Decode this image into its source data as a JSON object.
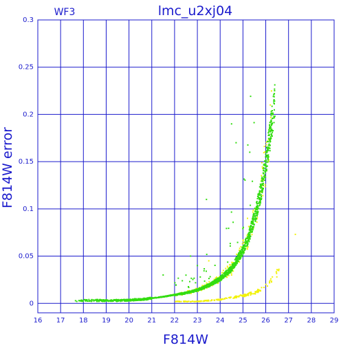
{
  "chart_data": {
    "type": "scatter",
    "title": "lmc_u2xj04",
    "corner_label": "WF3",
    "xlabel": "F814W",
    "ylabel": "F814W error",
    "xlim": [
      16,
      29
    ],
    "ylim": [
      -0.01,
      0.3
    ],
    "xticks": [
      "16",
      "17",
      "18",
      "19",
      "20",
      "21",
      "22",
      "23",
      "24",
      "25",
      "26",
      "27",
      "28",
      "29"
    ],
    "yticks": [
      "0",
      "0.05",
      "0.1",
      "0.15",
      "0.2",
      "0.25",
      "0.3"
    ],
    "grid": true,
    "colors": {
      "axis": "#1a1acc",
      "grid": "#1a1acc",
      "series_green": "#33dd11",
      "series_yellow": "#f2f20a"
    },
    "series": [
      {
        "color": "#33dd11",
        "trend": [
          [
            17.6,
            0.003
          ],
          [
            18.5,
            0.003
          ],
          [
            19.5,
            0.003
          ],
          [
            20.5,
            0.004
          ],
          [
            21.5,
            0.007
          ],
          [
            22.5,
            0.011
          ],
          [
            23.0,
            0.014
          ],
          [
            23.5,
            0.019
          ],
          [
            24.0,
            0.026
          ],
          [
            24.5,
            0.037
          ],
          [
            25.0,
            0.056
          ],
          [
            25.3,
            0.073
          ],
          [
            25.6,
            0.099
          ],
          [
            25.8,
            0.12
          ],
          [
            26.0,
            0.148
          ],
          [
            26.2,
            0.18
          ],
          [
            26.4,
            0.215
          ]
        ],
        "outliers": [
          [
            23.4,
            0.11
          ],
          [
            24.5,
            0.19
          ],
          [
            24.7,
            0.17
          ],
          [
            22.7,
            0.05
          ],
          [
            23.0,
            0.04
          ],
          [
            21.5,
            0.03
          ]
        ]
      },
      {
        "color": "#f2f20a",
        "trend": [
          [
            22.0,
            0.002
          ],
          [
            23.0,
            0.002
          ],
          [
            24.0,
            0.004
          ],
          [
            25.0,
            0.008
          ],
          [
            25.6,
            0.012
          ],
          [
            26.0,
            0.018
          ],
          [
            26.3,
            0.025
          ],
          [
            26.6,
            0.037
          ]
        ],
        "outliers": [
          [
            27.3,
            0.073
          ],
          [
            26.2,
            0.21
          ],
          [
            25.2,
            0.09
          ],
          [
            23.5,
            0.045
          ],
          [
            24.5,
            0.03
          ]
        ]
      }
    ]
  }
}
